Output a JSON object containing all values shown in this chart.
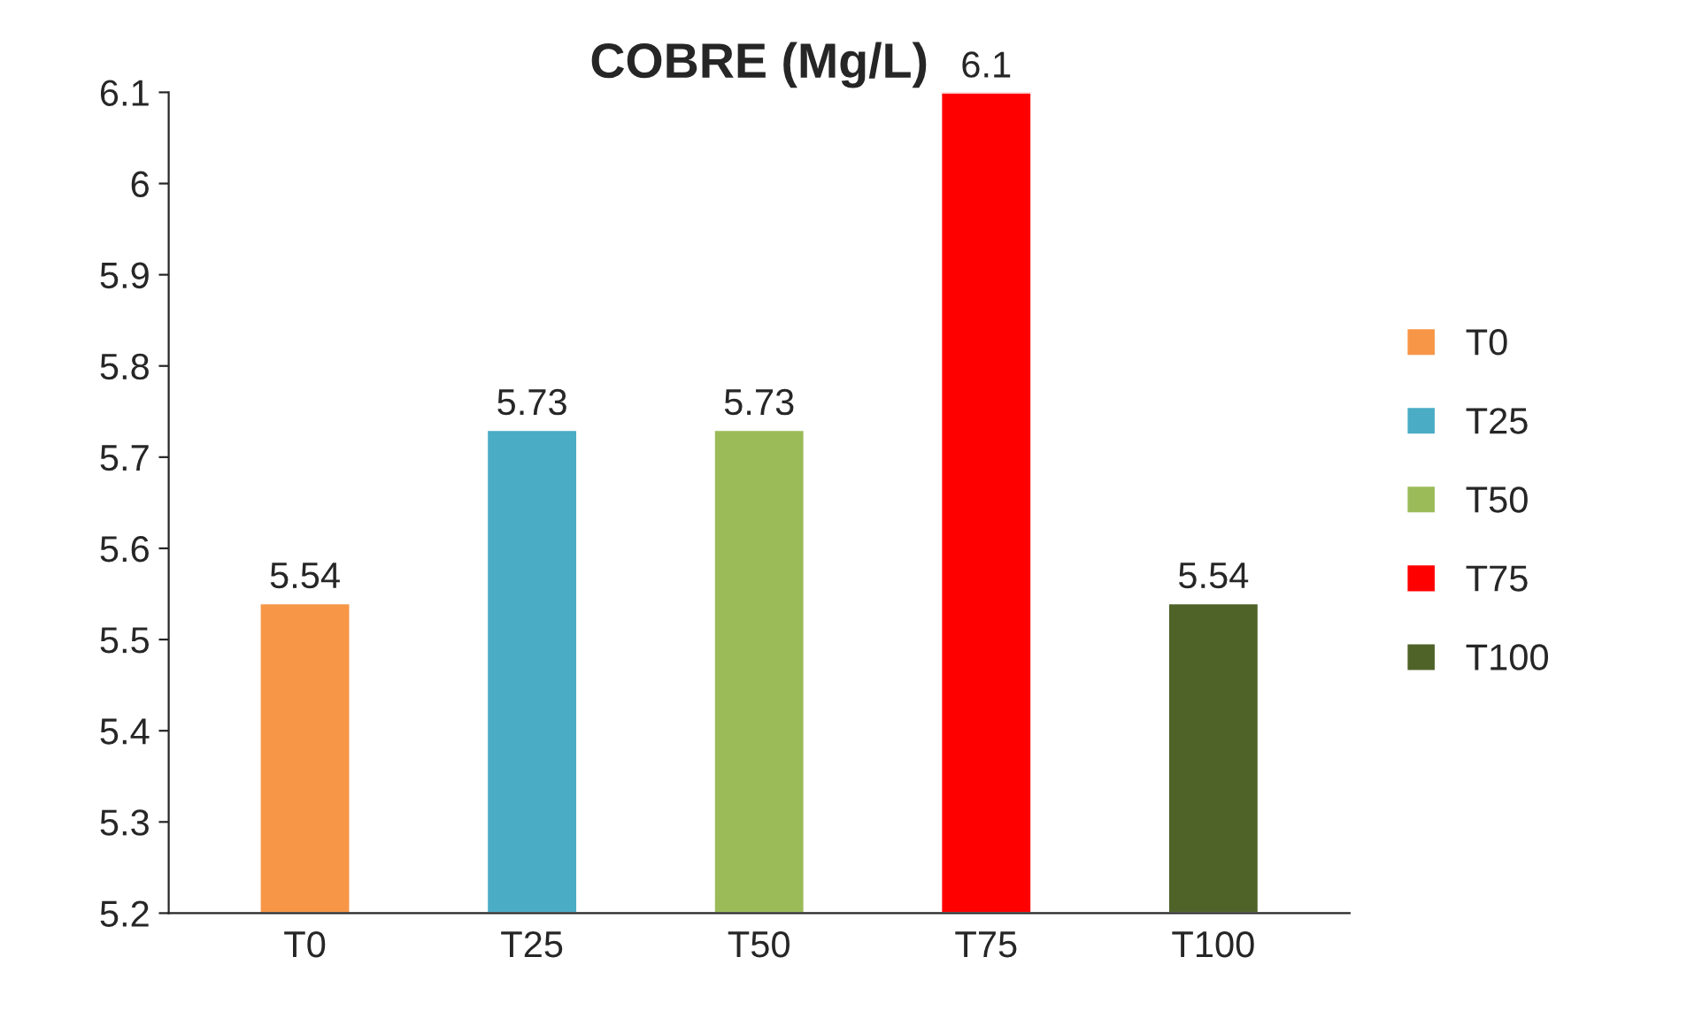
{
  "chart_data": {
    "type": "bar",
    "title": "COBRE (Mg/L)",
    "categories": [
      "T0",
      "T25",
      "T50",
      "T75",
      "T100"
    ],
    "series": [
      {
        "name": "T0",
        "color": "#f79646",
        "values": [
          5.54,
          null,
          null,
          null,
          null
        ]
      },
      {
        "name": "T25",
        "color": "#4bacc6",
        "values": [
          null,
          5.73,
          null,
          null,
          null
        ]
      },
      {
        "name": "T50",
        "color": "#9bbb59",
        "values": [
          null,
          null,
          5.73,
          null,
          null
        ]
      },
      {
        "name": "T75",
        "color": "#ff0000",
        "values": [
          null,
          null,
          null,
          6.1,
          null
        ]
      },
      {
        "name": "T100",
        "color": "#4f6228",
        "values": [
          null,
          null,
          null,
          null,
          5.54
        ]
      }
    ],
    "ylim": [
      5.2,
      6.1
    ],
    "yticks": [
      5.2,
      5.3,
      5.4,
      5.5,
      5.6,
      5.7,
      5.8,
      5.9,
      6,
      6.1
    ],
    "data_labels": true,
    "grid": false,
    "legend": "right"
  }
}
